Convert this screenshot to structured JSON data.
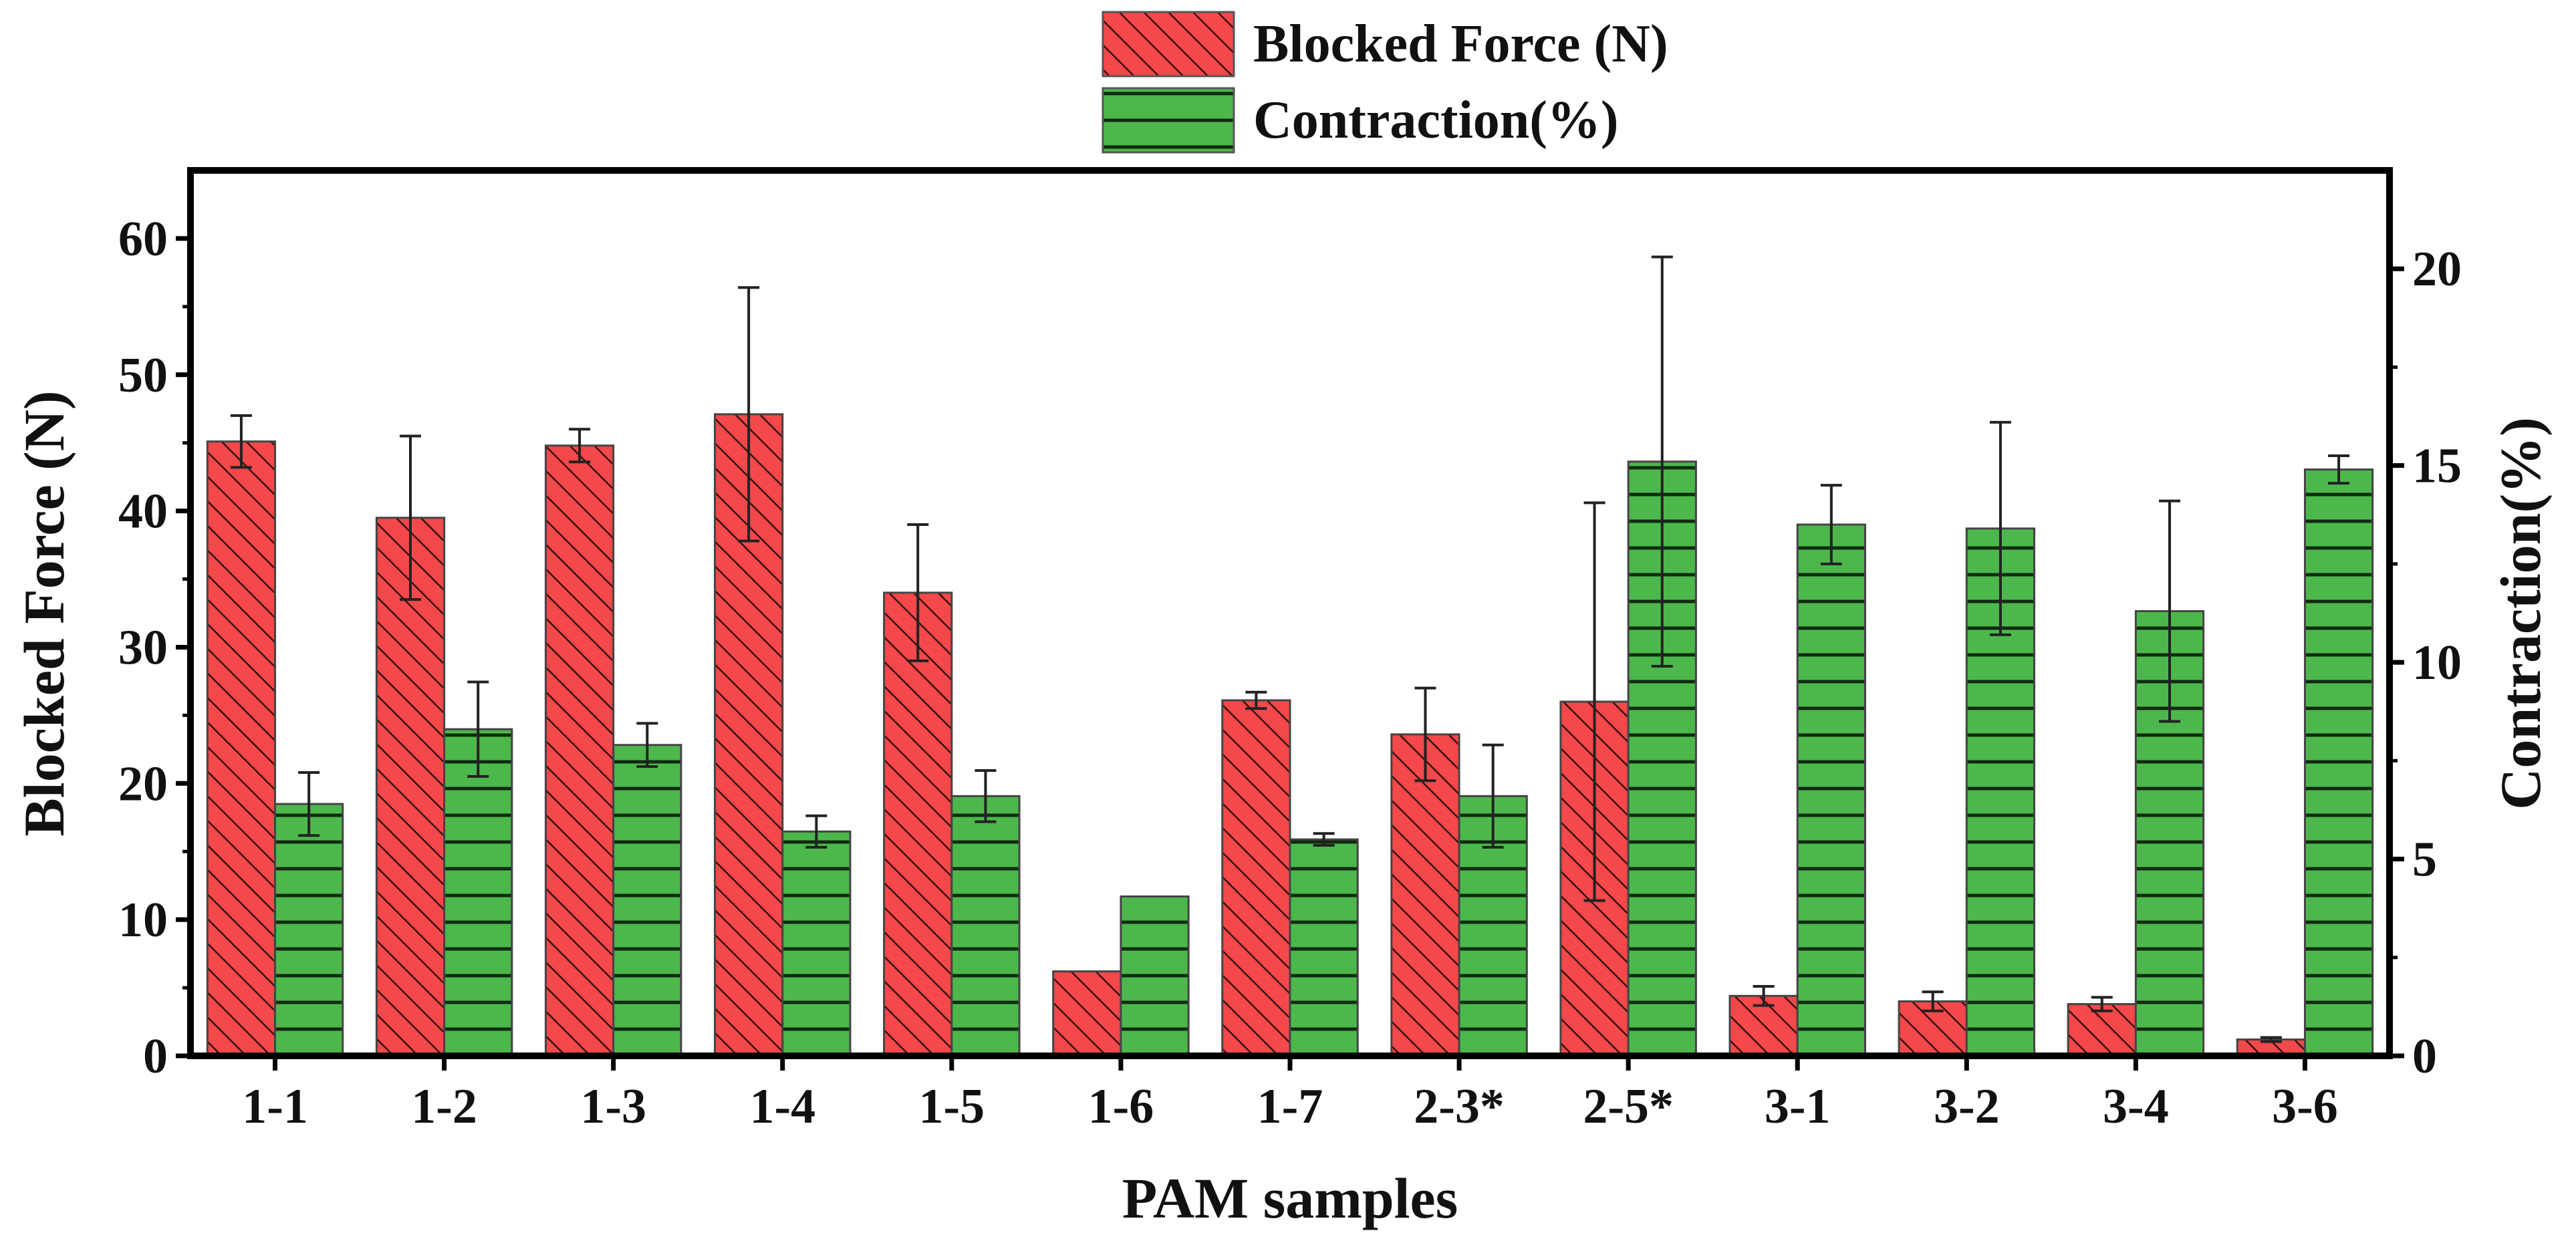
{
  "chart_data": {
    "type": "bar",
    "xlabel": "PAM samples",
    "ylabel": "Blocked Force (N)",
    "y2label": "Contraction(%)",
    "ylim": [
      0,
      65
    ],
    "y2lim": [
      0,
      22.5
    ],
    "yticks": [
      0,
      10,
      20,
      30,
      40,
      50,
      60
    ],
    "y2ticks": [
      0,
      5,
      10,
      15,
      20
    ],
    "categories": [
      "1-1",
      "1-2",
      "1-3",
      "1-4",
      "1-5",
      "1-6",
      "1-7",
      "2-3*",
      "2-5*",
      "3-1",
      "3-2",
      "3-4",
      "3-6"
    ],
    "legend_position": "top-center",
    "series": [
      {
        "name": "Blocked Force (N)",
        "axis": "left",
        "color": "#f4484a",
        "hatch": "diagonal",
        "values": [
          45.1,
          39.5,
          44.8,
          47.1,
          34.0,
          6.2,
          26.1,
          23.6,
          26.0,
          4.4,
          4.0,
          3.8,
          1.2
        ],
        "errors": [
          1.9,
          6.0,
          1.2,
          9.3,
          5.0,
          0.0,
          0.6,
          3.4,
          14.6,
          0.7,
          0.7,
          0.5,
          0.15
        ]
      },
      {
        "name": "Contraction(%)",
        "axis": "right",
        "color": "#4cb84c",
        "hatch": "horizontal",
        "values": [
          6.4,
          8.3,
          7.9,
          5.7,
          6.6,
          4.05,
          5.5,
          6.6,
          15.1,
          13.5,
          13.4,
          11.3,
          14.9
        ],
        "errors": [
          0.8,
          1.2,
          0.55,
          0.4,
          0.65,
          0.0,
          0.15,
          1.3,
          5.2,
          1.0,
          2.7,
          2.8,
          0.35
        ]
      }
    ]
  }
}
